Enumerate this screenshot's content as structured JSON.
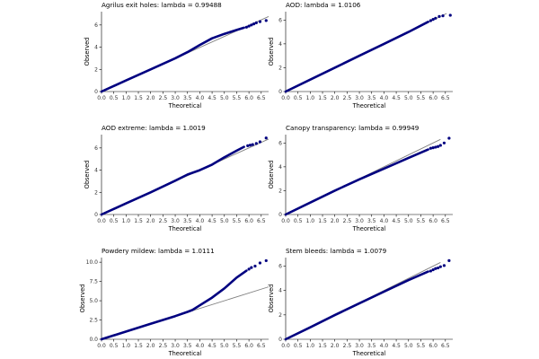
{
  "chart_data": [
    {
      "type": "scatter",
      "title": "Agrilus exit holes: lambda = 0.99488",
      "xlabel": "Theoretical",
      "ylabel": "Observed",
      "xlim": [
        0,
        6.8
      ],
      "ylim": [
        0,
        7.2
      ],
      "xticks": [
        "0.0",
        "0.5",
        "1.0",
        "1.5",
        "2.0",
        "2.5",
        "3.0",
        "3.5",
        "4.0",
        "4.5",
        "5.0",
        "5.5",
        "6.0",
        "6.5"
      ],
      "yticks": [
        "0",
        "2",
        "4",
        "6"
      ],
      "reference_line": {
        "x": [
          0,
          6.8
        ],
        "y": [
          0,
          6.76
        ]
      },
      "curve": {
        "x": [
          0,
          1,
          2,
          3,
          3.5,
          4.0,
          4.5,
          5.0,
          5.5,
          5.8
        ],
        "y": [
          0,
          1.0,
          2.0,
          3.0,
          3.55,
          4.2,
          4.8,
          5.2,
          5.55,
          5.75
        ]
      },
      "tail_points": {
        "x": [
          5.9,
          6.0,
          6.1,
          6.2,
          6.3,
          6.45,
          6.7
        ],
        "y": [
          5.8,
          5.9,
          6.0,
          6.1,
          6.2,
          6.3,
          6.4
        ]
      }
    },
    {
      "type": "scatter",
      "title": "AOD: lambda = 1.0106",
      "xlabel": "Theoretical",
      "ylabel": "Observed",
      "xlim": [
        0,
        6.8
      ],
      "ylim": [
        0,
        6.7
      ],
      "xticks": [
        "0.0",
        "0.5",
        "1.0",
        "1.5",
        "2.0",
        "2.5",
        "3.0",
        "3.5",
        "4.0",
        "4.5",
        "5.0",
        "5.5",
        "6.0",
        "6.5"
      ],
      "yticks": [
        "0",
        "2",
        "4",
        "6"
      ],
      "reference_line": {
        "x": [
          0,
          6.55
        ],
        "y": [
          0,
          6.55
        ]
      },
      "curve": {
        "x": [
          0,
          1,
          2,
          3,
          4,
          5,
          5.8
        ],
        "y": [
          0,
          1.0,
          2.0,
          3.0,
          4.0,
          5.0,
          5.85
        ]
      },
      "tail_points": {
        "x": [
          5.9,
          6.0,
          6.1,
          6.25,
          6.4,
          6.7
        ],
        "y": [
          5.95,
          6.05,
          6.15,
          6.3,
          6.35,
          6.4
        ]
      }
    },
    {
      "type": "scatter",
      "title": "AOD extreme: lambda = 1.0019",
      "xlabel": "Theoretical",
      "ylabel": "Observed",
      "xlim": [
        0,
        6.8
      ],
      "ylim": [
        0,
        7.2
      ],
      "xticks": [
        "0.0",
        "0.5",
        "1.0",
        "1.5",
        "2.0",
        "2.5",
        "3.0",
        "3.5",
        "4.0",
        "4.5",
        "5.0",
        "5.5",
        "6.0",
        "6.5"
      ],
      "yticks": [
        "0",
        "2",
        "4",
        "6"
      ],
      "reference_line": {
        "x": [
          0,
          6.8
        ],
        "y": [
          0,
          6.8
        ]
      },
      "curve": {
        "x": [
          0,
          1,
          2,
          3,
          3.5,
          4.0,
          4.5,
          5.0,
          5.5,
          5.8
        ],
        "y": [
          0,
          1.0,
          2.0,
          3.05,
          3.6,
          4.0,
          4.5,
          5.15,
          5.75,
          6.1
        ]
      },
      "tail_points": {
        "x": [
          5.95,
          6.05,
          6.15,
          6.3,
          6.45,
          6.7
        ],
        "y": [
          6.2,
          6.25,
          6.3,
          6.4,
          6.55,
          6.9
        ]
      }
    },
    {
      "type": "scatter",
      "title": "Canopy transparency: lambda = 0.99949",
      "xlabel": "Theoretical",
      "ylabel": "Observed",
      "xlim": [
        0,
        6.8
      ],
      "ylim": [
        0,
        6.7
      ],
      "xticks": [
        "0.0",
        "0.5",
        "1.0",
        "1.5",
        "2.0",
        "2.5",
        "3.0",
        "3.5",
        "4.0",
        "4.5",
        "5.0",
        "5.5",
        "6.0",
        "6.5"
      ],
      "yticks": [
        "0",
        "2",
        "4",
        "6"
      ],
      "reference_line": {
        "x": [
          0,
          6.3
        ],
        "y": [
          0,
          6.3
        ]
      },
      "curve": {
        "x": [
          0,
          1,
          2,
          3,
          4,
          5,
          5.8
        ],
        "y": [
          0,
          1.0,
          2.0,
          2.95,
          3.85,
          4.75,
          5.45
        ]
      },
      "tail_points": {
        "x": [
          5.9,
          6.0,
          6.1,
          6.2,
          6.3,
          6.45,
          6.65
        ],
        "y": [
          5.55,
          5.6,
          5.65,
          5.7,
          5.8,
          6.0,
          6.4
        ]
      }
    },
    {
      "type": "scatter",
      "title": "Powdery mildew: lambda = 1.0111",
      "xlabel": "Theoretical",
      "ylabel": "Observed",
      "xlim": [
        0,
        6.8
      ],
      "ylim": [
        0,
        10.6
      ],
      "xticks": [
        "0.0",
        "0.5",
        "1.0",
        "1.5",
        "2.0",
        "2.5",
        "3.0",
        "3.5",
        "4.0",
        "4.5",
        "5.0",
        "5.5",
        "6.0",
        "6.5"
      ],
      "yticks": [
        "0.0",
        "2.5",
        "5.0",
        "7.5",
        "10.0"
      ],
      "reference_line": {
        "x": [
          0,
          6.8
        ],
        "y": [
          0,
          6.8
        ]
      },
      "curve": {
        "x": [
          0,
          1,
          2,
          3,
          3.5,
          3.7,
          4.0,
          4.5,
          5.0,
          5.5,
          5.9
        ],
        "y": [
          0,
          1.0,
          2.0,
          3.0,
          3.55,
          3.8,
          4.4,
          5.4,
          6.6,
          8.0,
          8.9
        ]
      },
      "tail_points": {
        "x": [
          6.0,
          6.1,
          6.25,
          6.45,
          6.7
        ],
        "y": [
          9.1,
          9.3,
          9.5,
          9.9,
          10.2
        ]
      }
    },
    {
      "type": "scatter",
      "title": "Stem bleeds: lambda = 1.0079",
      "xlabel": "Theoretical",
      "ylabel": "Observed",
      "xlim": [
        0,
        6.8
      ],
      "ylim": [
        0,
        6.7
      ],
      "xticks": [
        "0.0",
        "0.5",
        "1.0",
        "1.5",
        "2.0",
        "2.5",
        "3.0",
        "3.5",
        "4.0",
        "4.5",
        "5.0",
        "5.5",
        "6.0",
        "6.5"
      ],
      "yticks": [
        "0",
        "2",
        "4",
        "6"
      ],
      "reference_line": {
        "x": [
          0,
          6.3
        ],
        "y": [
          0,
          6.3
        ]
      },
      "curve": {
        "x": [
          0,
          1,
          2,
          3,
          4,
          5,
          5.8
        ],
        "y": [
          0,
          0.98,
          1.98,
          2.95,
          3.9,
          4.85,
          5.55
        ]
      },
      "tail_points": {
        "x": [
          5.9,
          6.0,
          6.1,
          6.2,
          6.3,
          6.45,
          6.65
        ],
        "y": [
          5.6,
          5.7,
          5.8,
          5.85,
          5.95,
          6.05,
          6.45
        ]
      }
    }
  ],
  "colors": {
    "points": "#000080",
    "reference": "#808080",
    "axis": "#000000"
  }
}
